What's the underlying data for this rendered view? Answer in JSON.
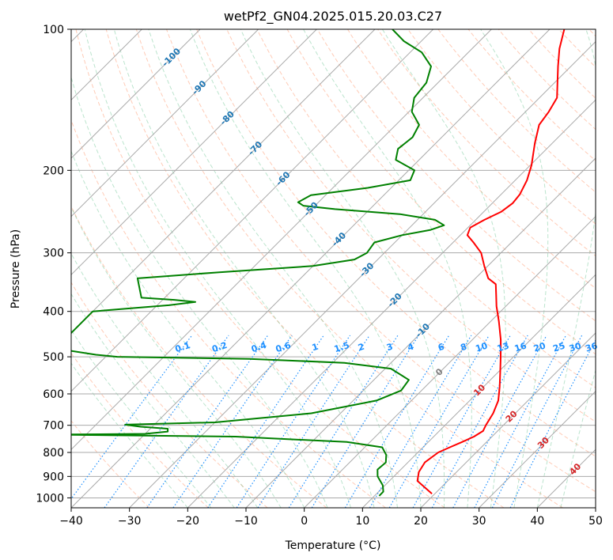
{
  "chart_data": {
    "type": "line",
    "title": "wetPf2_GN04.2025.015.20.03.C27",
    "xlabel": "Temperature (°C)",
    "ylabel": "Pressure (hPa)",
    "xlim": [
      -40,
      50
    ],
    "ylim": [
      1050,
      100
    ],
    "yscale": "log",
    "skew_deg": 45,
    "x_ticks": [
      -40,
      -30,
      -20,
      -10,
      0,
      10,
      20,
      30,
      40,
      50
    ],
    "x_tick_labels": [
      "−40",
      "−30",
      "−20",
      "−10",
      "0",
      "10",
      "20",
      "30",
      "40",
      "50"
    ],
    "y_ticks": [
      100,
      200,
      300,
      400,
      500,
      600,
      700,
      800,
      900,
      1000
    ],
    "y_tick_labels": [
      "100",
      "200",
      "300",
      "400",
      "500",
      "600",
      "700",
      "800",
      "900",
      "1000"
    ],
    "grid": true,
    "series": [
      {
        "color": "#ff0000",
        "role": "temperature",
        "points": [
          [
            980,
            19.5
          ],
          [
            950,
            17.2
          ],
          [
            920,
            14.8
          ],
          [
            880,
            13.5
          ],
          [
            840,
            12.9
          ],
          [
            800,
            13.5
          ],
          [
            780,
            14.6
          ],
          [
            760,
            15.8
          ],
          [
            740,
            16.9
          ],
          [
            720,
            17.5
          ],
          [
            700,
            17.0
          ],
          [
            660,
            16.2
          ],
          [
            620,
            14.9
          ],
          [
            580,
            12.8
          ],
          [
            540,
            10.4
          ],
          [
            500,
            7.8
          ],
          [
            460,
            4.9
          ],
          [
            420,
            1.4
          ],
          [
            390,
            -1.6
          ],
          [
            370,
            -3.5
          ],
          [
            350,
            -5.5
          ],
          [
            340,
            -7.8
          ],
          [
            320,
            -10.6
          ],
          [
            300,
            -13.4
          ],
          [
            285,
            -16.5
          ],
          [
            275,
            -18.8
          ],
          [
            265,
            -19.6
          ],
          [
            255,
            -18.5
          ],
          [
            245,
            -17.0
          ],
          [
            235,
            -16.5
          ],
          [
            225,
            -16.8
          ],
          [
            210,
            -18.0
          ],
          [
            195,
            -19.8
          ],
          [
            175,
            -23.0
          ],
          [
            160,
            -25.4
          ],
          [
            150,
            -26.0
          ],
          [
            140,
            -27.0
          ],
          [
            130,
            -29.5
          ],
          [
            120,
            -32.2
          ],
          [
            110,
            -35.0
          ],
          [
            100,
            -37.5
          ]
        ]
      },
      {
        "color": "#008000",
        "role": "dewpoint",
        "points": [
          [
            990,
            10.8
          ],
          [
            970,
            10.8
          ],
          [
            940,
            9.6
          ],
          [
            900,
            7.2
          ],
          [
            870,
            6.0
          ],
          [
            840,
            6.2
          ],
          [
            810,
            5.0
          ],
          [
            780,
            3.0
          ],
          [
            760,
            -4.0
          ],
          [
            740,
            -24.0
          ],
          [
            735,
            -46.0
          ],
          [
            733,
            -56.0
          ],
          [
            730,
            -40.0
          ],
          [
            722,
            -36.5
          ],
          [
            712,
            -37.0
          ],
          [
            705,
            -42.0
          ],
          [
            698,
            -45.0
          ],
          [
            690,
            -30.0
          ],
          [
            660,
            -15.0
          ],
          [
            620,
            -6.0
          ],
          [
            590,
            -3.5
          ],
          [
            560,
            -4.0
          ],
          [
            530,
            -9.0
          ],
          [
            515,
            -18.0
          ],
          [
            505,
            -35.0
          ],
          [
            500,
            -58.0
          ],
          [
            495,
            -62.0
          ],
          [
            480,
            -70.0
          ],
          [
            400,
            -70.0
          ],
          [
            388,
            -58.0
          ],
          [
            382,
            -54.0
          ],
          [
            378,
            -58.0
          ],
          [
            374,
            -64.0
          ],
          [
            340,
            -68.0
          ],
          [
            330,
            -55.0
          ],
          [
            320,
            -40.0
          ],
          [
            310,
            -34.0
          ],
          [
            300,
            -33.0
          ],
          [
            285,
            -33.5
          ],
          [
            275,
            -30.0
          ],
          [
            268,
            -26.0
          ],
          [
            262,
            -24.5
          ],
          [
            255,
            -27.0
          ],
          [
            248,
            -34.0
          ],
          [
            242,
            -46.0
          ],
          [
            238,
            -52.0
          ],
          [
            234,
            -53.5
          ],
          [
            226,
            -52.5
          ],
          [
            218,
            -44.0
          ],
          [
            210,
            -38.0
          ],
          [
            200,
            -39.0
          ],
          [
            190,
            -44.0
          ],
          [
            180,
            -45.5
          ],
          [
            170,
            -45.0
          ],
          [
            160,
            -46.0
          ],
          [
            150,
            -49.5
          ],
          [
            140,
            -51.5
          ],
          [
            130,
            -52.0
          ],
          [
            120,
            -54.0
          ],
          [
            112,
            -58.0
          ],
          [
            106,
            -63.0
          ],
          [
            100,
            -67.0
          ]
        ]
      }
    ],
    "isotherm_labels": [
      "-100",
      "-90",
      "-80",
      "-70",
      "-60",
      "-50",
      "-40",
      "-30",
      "-20",
      "-10",
      "0",
      "10",
      "20",
      "30",
      "40"
    ],
    "mixing_ratio_labels": [
      "0.1",
      "0.2",
      "0.4",
      "0.6",
      "1",
      "1.5",
      "2",
      "3",
      "4",
      "6",
      "8",
      "10",
      "13",
      "16",
      "20",
      "25",
      "30",
      "36"
    ]
  }
}
